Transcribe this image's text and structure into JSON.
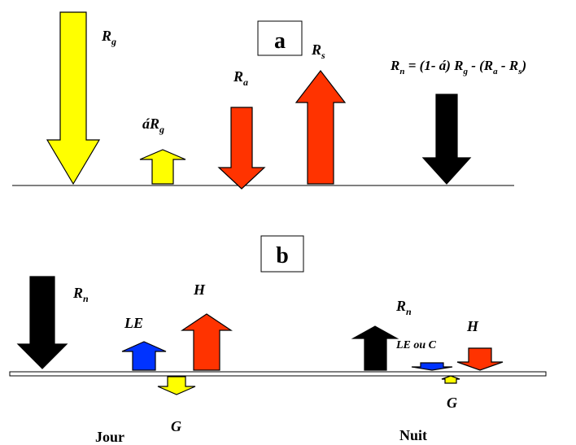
{
  "panel_a": {
    "label": "a",
    "equation": {
      "lhs_main": "R",
      "lhs_sub": "n",
      "rhs_part1": " = (1- á) R",
      "rhs_sub1": "g",
      "rhs_part2": " - (R",
      "rhs_sub2": "a",
      "rhs_part3": " - R",
      "rhs_sub3": "s",
      "rhs_part4": ")"
    },
    "arrows": [
      {
        "id": "rg",
        "label_main": "R",
        "label_sub": "g",
        "direction": "down",
        "color": "#ffff00"
      },
      {
        "id": "arg",
        "label_main": "áR",
        "label_sub": "g",
        "direction": "up",
        "color": "#ffff00"
      },
      {
        "id": "ra",
        "label_main": "R",
        "label_sub": "a",
        "direction": "down",
        "color": "#ff3300"
      },
      {
        "id": "rs",
        "label_main": "R",
        "label_sub": "s",
        "direction": "up",
        "color": "#ff3300"
      },
      {
        "id": "rn",
        "label_main": "",
        "label_sub": "",
        "direction": "down",
        "color": "#000000"
      }
    ]
  },
  "panel_b": {
    "label": "b",
    "day_label": "Jour",
    "night_label": "Nuit",
    "day_arrows": [
      {
        "id": "rn-day",
        "label_main": "R",
        "label_sub": "n",
        "direction": "down",
        "color": "#000000"
      },
      {
        "id": "le-day",
        "label_main": "LE",
        "direction": "up",
        "color": "#0033ff"
      },
      {
        "id": "h-day",
        "label_main": "H",
        "direction": "up",
        "color": "#ff3300"
      },
      {
        "id": "g-day",
        "label_main": "G",
        "direction": "down",
        "color": "#ffff00"
      }
    ],
    "night_arrows": [
      {
        "id": "rn-night",
        "label_main": "R",
        "label_sub": "n",
        "direction": "up",
        "color": "#000000"
      },
      {
        "id": "le-night",
        "label_main": "LE ou C",
        "direction": "down",
        "color": "#0033ff"
      },
      {
        "id": "h-night",
        "label_main": "H",
        "direction": "down",
        "color": "#ff3300"
      },
      {
        "id": "g-night",
        "label_main": "G",
        "direction": "up",
        "color": "#ffff00"
      }
    ]
  }
}
